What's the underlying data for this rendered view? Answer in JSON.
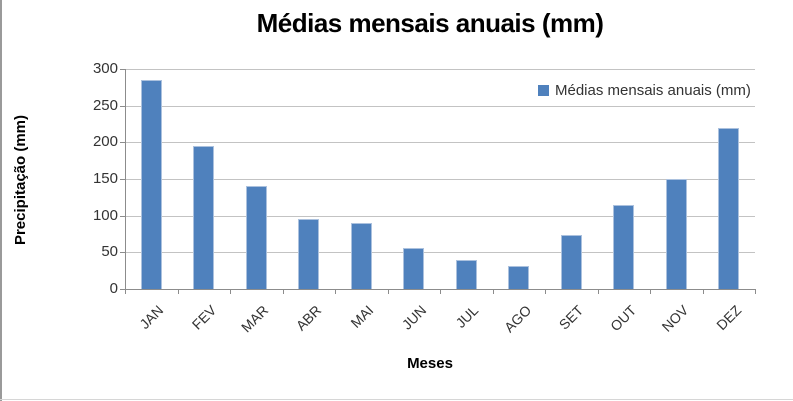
{
  "chart_data": {
    "type": "bar",
    "title": "Médias mensais anuais (mm)",
    "xlabel": "Meses",
    "ylabel": "Precipitação (mm)",
    "categories": [
      "JAN",
      "FEV",
      "MAR",
      "ABR",
      "MAI",
      "JUN",
      "JUL",
      "AGO",
      "SET",
      "OUT",
      "NOV",
      "DEZ"
    ],
    "values": [
      285,
      195,
      140,
      95,
      90,
      56,
      40,
      32,
      73,
      114,
      150,
      220
    ],
    "ylim": [
      0,
      300
    ],
    "yticks": [
      0,
      50,
      100,
      150,
      200,
      250,
      300
    ],
    "grid": true,
    "legend": {
      "label": "Médias mensais anuais (mm)",
      "position": "top-right-inside"
    },
    "colors": {
      "bar": "#4f81bd",
      "bar_border": "#abc1de",
      "gridline": "#c3c3c3",
      "axis": "#8c8c8c",
      "tick_text": "#333333",
      "title_text": "#000000"
    }
  }
}
